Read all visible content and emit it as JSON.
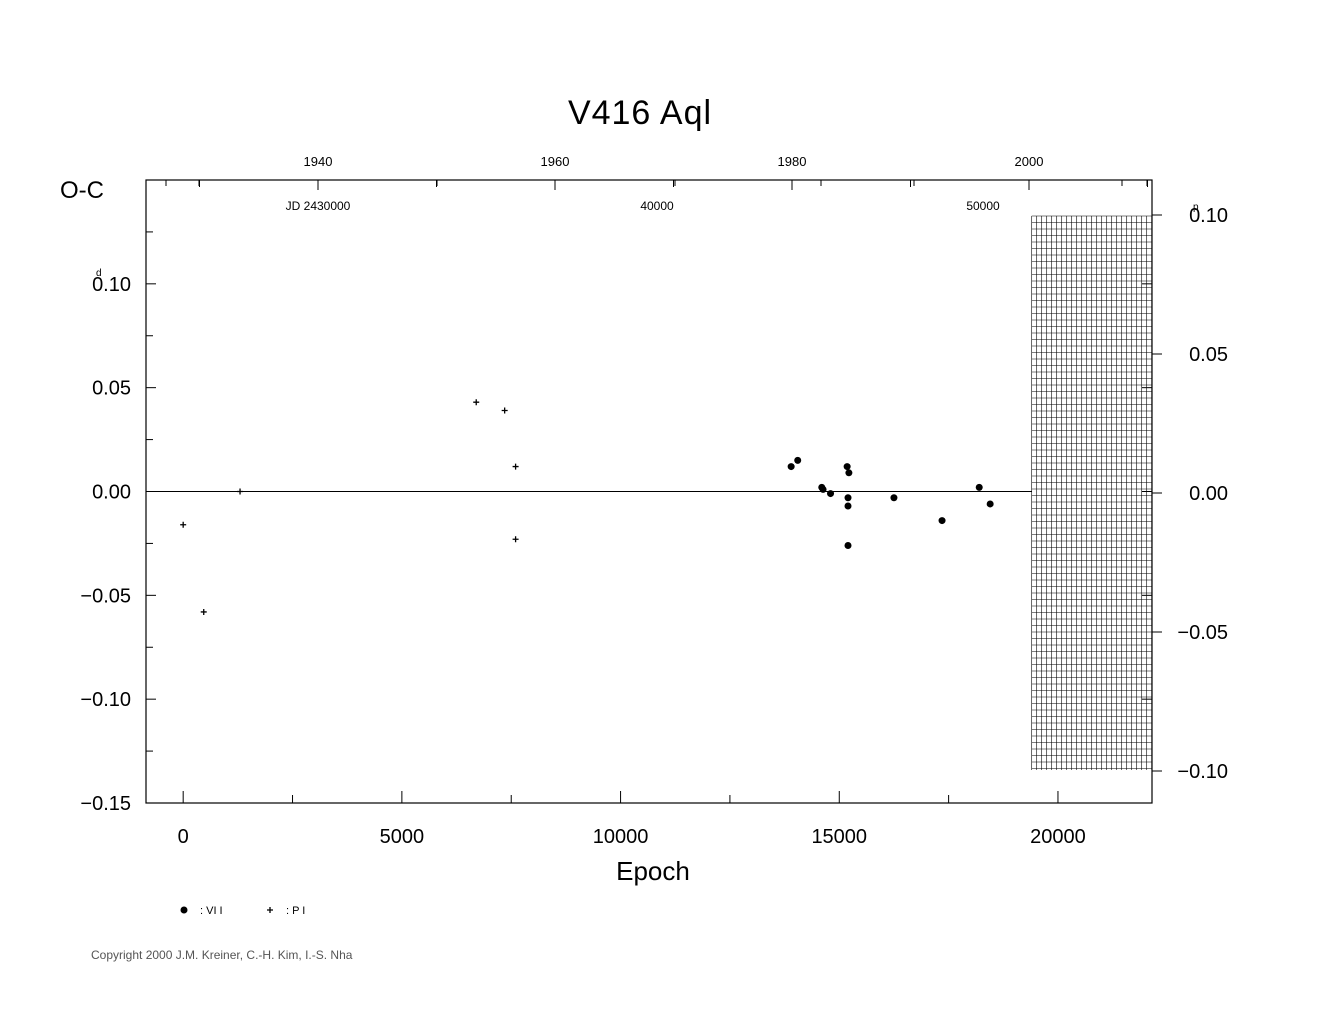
{
  "chart_data": {
    "type": "scatter",
    "title": "V416  Aql",
    "xlabel": "Epoch",
    "ylabel": "O-C",
    "y_unit_left": "d",
    "y_unit_right": "p",
    "xlim": [
      -850,
      22150
    ],
    "ylim": [
      -0.15,
      0.15
    ],
    "x_ticks": [
      0,
      5000,
      10000,
      15000,
      20000
    ],
    "x_tick_labels": [
      "0",
      "5000",
      "10000",
      "15000",
      "20000"
    ],
    "y_ticks": [
      0.1,
      0.05,
      0.0,
      -0.05,
      -0.1,
      -0.15
    ],
    "y_tick_labels": [
      "0.10",
      "0.05",
      "0.00",
      "−0.05",
      "−0.10",
      "−0.15"
    ],
    "right_ticks": [
      0.1,
      0.05,
      0.0,
      -0.05,
      -0.1
    ],
    "right_tick_labels": [
      "0.10",
      "0.05",
      "0.00",
      "−0.05",
      "−0.10"
    ],
    "right_ylim": [
      -0.112,
      0.112
    ],
    "top_year_ticks": [
      1940,
      1960,
      1980,
      2000
    ],
    "top_year_labels": [
      "1940",
      "1960",
      "1980",
      "2000"
    ],
    "top_jd_labels": [
      "JD  2430000",
      "40000",
      "50000"
    ],
    "hatched_region_from_epoch": 19400,
    "grid": false,
    "legend_position": "bottom-left",
    "legend": [
      {
        "symbol": "dot",
        "label": ": VI I"
      },
      {
        "symbol": "plus",
        "label": ": P I"
      }
    ],
    "series": [
      {
        "name": "VI",
        "marker": "dot",
        "x": [
          13900,
          14050,
          14600,
          14630,
          14800,
          15180,
          15220,
          15200,
          15200,
          15200,
          16250,
          17350,
          18200,
          18450
        ],
        "y": [
          0.012,
          0.015,
          0.002,
          0.001,
          -0.001,
          0.012,
          0.009,
          -0.003,
          -0.007,
          -0.026,
          -0.003,
          -0.014,
          0.002,
          -0.006
        ]
      },
      {
        "name": "PI",
        "marker": "plus",
        "x": [
          0,
          470,
          1300,
          6700,
          7350,
          7600,
          7600
        ],
        "y": [
          -0.016,
          -0.058,
          0.0,
          0.043,
          0.039,
          0.012,
          -0.023
        ]
      }
    ]
  },
  "footer": {
    "copyright": "Copyright 2000 J.M. Kreiner, C.-H. Kim, I.-S. Nha"
  }
}
